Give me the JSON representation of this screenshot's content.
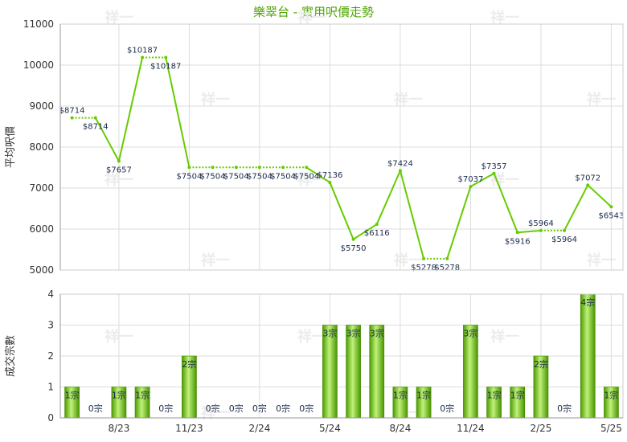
{
  "chart_data": [
    {
      "type": "line",
      "title": "樂翠台 - 實用呎價走勢",
      "ylabel": "平均呎價",
      "ylim": [
        5000,
        11000
      ],
      "yticks": [
        5000,
        6000,
        7000,
        8000,
        9000,
        10000,
        11000
      ],
      "grid": true,
      "values": [
        8714,
        8714,
        7657,
        10187,
        10187,
        7504,
        7504,
        7504,
        7504,
        7504,
        7504,
        7136,
        5750,
        6116,
        7424,
        5278,
        5278,
        7037,
        7357,
        5916,
        5964,
        5964,
        7072,
        6543
      ],
      "labels": [
        "$8714",
        "$8714",
        "$7657",
        "$10187",
        "$10187",
        "$7504",
        "$7504",
        "$7504",
        "$7504",
        "$7504",
        "$7504",
        "$7136",
        "$5750",
        "$6116",
        "$7424",
        "$5278",
        "$5278",
        "$7037",
        "$7357",
        "$5916",
        "$5964",
        "$5964",
        "$7072",
        "$6543"
      ],
      "carried_forward": [
        false,
        true,
        false,
        false,
        true,
        false,
        true,
        true,
        true,
        true,
        true,
        false,
        false,
        false,
        false,
        false,
        true,
        false,
        false,
        false,
        false,
        true,
        false,
        false
      ],
      "line_color": "#66cc00"
    },
    {
      "type": "bar",
      "ylabel": "成交宗數",
      "ylim": [
        0,
        4
      ],
      "yticks": [
        0,
        1,
        2,
        3,
        4
      ],
      "categories": [
        "",
        "",
        "8/23",
        "",
        "",
        "11/23",
        "",
        "",
        "2/24",
        "",
        "",
        "5/24",
        "",
        "",
        "8/24",
        "",
        "",
        "11/24",
        "",
        "",
        "2/25",
        "",
        "",
        "5/25"
      ],
      "values": [
        1,
        0,
        1,
        1,
        0,
        2,
        0,
        0,
        0,
        0,
        0,
        3,
        3,
        3,
        1,
        1,
        0,
        3,
        1,
        1,
        2,
        0,
        4,
        1
      ],
      "labels": [
        "1宗",
        "0宗",
        "1宗",
        "1宗",
        "0宗",
        "2宗",
        "0宗",
        "0宗",
        "0宗",
        "0宗",
        "0宗",
        "3宗",
        "3宗",
        "3宗",
        "1宗",
        "1宗",
        "0宗",
        "3宗",
        "1宗",
        "1宗",
        "2宗",
        "0宗",
        "4宗",
        "1宗"
      ],
      "bar_color": "#66bb11"
    }
  ],
  "watermark": "祥一"
}
